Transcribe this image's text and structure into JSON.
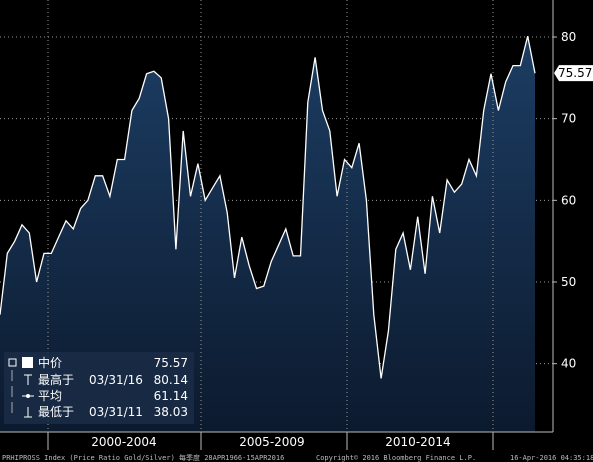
{
  "chart_data": {
    "type": "area",
    "title": "",
    "xlabel": "",
    "ylabel": "",
    "ylim": [
      35,
      82
    ],
    "yticks": [
      40,
      50,
      60,
      70,
      80
    ],
    "x_period_labels": [
      "2000-2004",
      "2005-2009",
      "2010-2014"
    ],
    "last_value_label": "75.57",
    "series": [
      {
        "values": [
          46.0,
          53.5,
          55.0,
          57.0,
          56.0,
          50.0,
          53.5,
          53.5,
          55.5,
          57.5,
          56.5,
          59.0,
          60.0,
          63.0,
          63.0,
          60.5,
          65.0,
          65.0,
          71.0,
          72.5,
          75.5,
          75.8,
          75.0,
          70.0,
          54.0,
          68.5,
          60.5,
          64.5,
          60.0,
          61.5,
          63.0,
          58.5,
          50.5,
          55.5,
          52.0,
          49.2,
          49.5,
          52.5,
          54.5,
          56.5,
          53.2,
          53.2,
          72.0,
          77.5,
          71.0,
          68.5,
          60.5,
          65.0,
          64.0,
          67.0,
          60.0,
          46.0,
          38.2,
          44.0,
          54.0,
          56.0,
          51.5,
          58.0,
          51.0,
          60.5,
          56.0,
          62.5,
          61.0,
          62.0,
          65.0,
          63.0,
          71.0,
          75.5,
          71.0,
          74.5,
          76.5,
          76.5,
          80.1,
          75.57
        ]
      }
    ],
    "legend": {
      "position": "bottom-left",
      "items": [
        {
          "label": "中价",
          "date": "",
          "value": "75.57",
          "marker": "square"
        },
        {
          "label": "最高于",
          "date": "03/31/16",
          "value": "80.14",
          "marker": "high"
        },
        {
          "label": "平均",
          "date": "",
          "value": "61.14",
          "marker": "avg"
        },
        {
          "label": "最低于",
          "date": "03/31/11",
          "value": "38.03",
          "marker": "low"
        }
      ]
    }
  },
  "footer": {
    "left": "PRHIPROSS Index (Price Ratio Gold/Silver)  每季度 28APR1966-15APR2016",
    "center": "Copyright© 2016 Bloomberg Finance L.P.",
    "right": "16-Apr-2016 04:35:18"
  },
  "colors": {
    "background": "#000000",
    "area_top": "#1c3d63",
    "area_bottom": "#0c1a2e",
    "line": "#ffffff",
    "grid": "#9a9a9a",
    "legend_bg": "#1a2c46"
  }
}
